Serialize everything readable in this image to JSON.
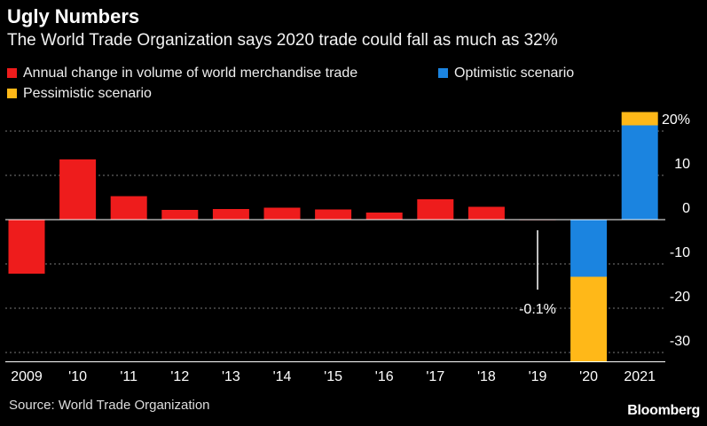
{
  "title": "Ugly Numbers",
  "subtitle": "The World Trade Organization says 2020 trade could fall as much as 32%",
  "legend": [
    {
      "label": "Annual change in volume of world merchandise trade",
      "color": "#ee1c1c"
    },
    {
      "label": "Optimistic scenario",
      "color": "#1b84e0"
    },
    {
      "label": "Pessimistic scenario",
      "color": "#ffb818"
    }
  ],
  "source": "Source: World Trade Organization",
  "brand": "Bloomberg",
  "chart_data": {
    "type": "bar",
    "stacked": true,
    "categories": [
      "2009",
      "'10",
      "'11",
      "'12",
      "'13",
      "'14",
      "'15",
      "'16",
      "'17",
      "'18",
      "'19",
      "'20",
      "2021"
    ],
    "series": [
      {
        "name": "Annual change in volume of world merchandise trade",
        "color": "#ee1c1c",
        "values": [
          -12.2,
          13.6,
          5.3,
          2.2,
          2.4,
          2.7,
          2.3,
          1.6,
          4.6,
          2.9,
          -0.1,
          null,
          null
        ]
      },
      {
        "name": "Optimistic scenario",
        "color": "#1b84e0",
        "values": [
          null,
          null,
          null,
          null,
          null,
          null,
          null,
          null,
          null,
          null,
          null,
          -12.9,
          21.3
        ]
      },
      {
        "name": "Pessimistic scenario",
        "color": "#ffb818",
        "values": [
          null,
          null,
          null,
          null,
          null,
          null,
          null,
          null,
          null,
          null,
          null,
          -19.1,
          3.0
        ]
      }
    ],
    "y_ticks": [
      {
        "value": 20,
        "label": "20%"
      },
      {
        "value": 10,
        "label": "10"
      },
      {
        "value": 0,
        "label": "0"
      },
      {
        "value": -10,
        "label": "-10"
      },
      {
        "value": -20,
        "label": "-20"
      },
      {
        "value": -30,
        "label": "-30"
      }
    ],
    "ylim": [
      -32,
      24
    ],
    "annotations": [
      {
        "category": "'19",
        "text": "-0.1%"
      }
    ],
    "grid": true,
    "legend_position": "top-left"
  }
}
